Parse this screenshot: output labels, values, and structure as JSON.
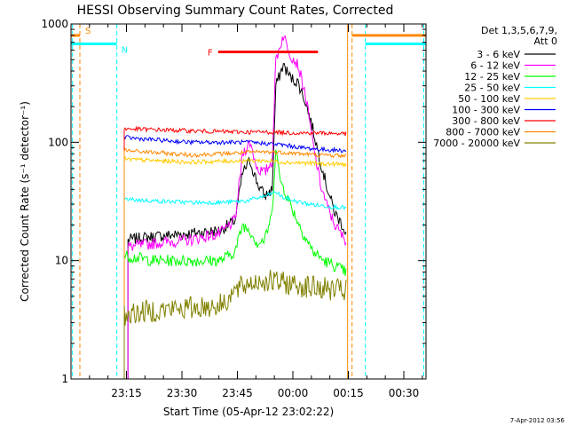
{
  "chart_data": {
    "type": "line",
    "title": "HESSI Observing Summary Count Rates, Corrected",
    "xlabel": "Start Time (05-Apr-12 23:02:22)",
    "ylabel": "Corrected Count Rate (s⁻¹ detector⁻¹)",
    "y_scale": "log",
    "ylim": [
      1,
      1000
    ],
    "xlim_minutes_after_start": [
      -2.4,
      93.6
    ],
    "x_ticks": [
      {
        "label": "23:15",
        "t": 12.6
      },
      {
        "label": "23:30",
        "t": 27.6
      },
      {
        "label": "23:45",
        "t": 42.6
      },
      {
        "label": "00:00",
        "t": 57.6
      },
      {
        "label": "00:15",
        "t": 72.6
      },
      {
        "label": "00:30",
        "t": 87.6
      }
    ],
    "y_ticks": [
      {
        "label": "1",
        "value": 1
      },
      {
        "label": "10",
        "value": 10
      },
      {
        "label": "100",
        "value": 100
      },
      {
        "label": "1000",
        "value": 1000
      }
    ],
    "legend": {
      "placement": "right",
      "header_lines": [
        "Det 1,3,5,6,7,9,",
        "Att 0"
      ]
    },
    "series": [
      {
        "name": "3 - 6 keV",
        "color": "#000000",
        "x": [
          13,
          20,
          30,
          38,
          42,
          44,
          46,
          48,
          50,
          52,
          53,
          55,
          57,
          59,
          61,
          63,
          65,
          67,
          69,
          71,
          72
        ],
        "y": [
          15,
          16,
          17,
          18,
          22,
          55,
          70,
          45,
          35,
          40,
          300,
          450,
          350,
          320,
          220,
          130,
          70,
          40,
          25,
          20,
          17
        ]
      },
      {
        "name": "6 - 12 keV",
        "color": "#ff00ff",
        "x": [
          13,
          20,
          30,
          38,
          42,
          44,
          46,
          48,
          50,
          52,
          53,
          55,
          57,
          59,
          61,
          63,
          65,
          67,
          69,
          71,
          72
        ],
        "y": [
          13,
          14,
          15,
          17,
          22,
          80,
          100,
          60,
          55,
          70,
          500,
          800,
          550,
          450,
          250,
          100,
          45,
          28,
          20,
          16,
          15
        ]
      },
      {
        "name": "12 - 25 keV",
        "color": "#00ff00",
        "x": [
          12,
          20,
          30,
          38,
          42,
          44,
          46,
          48,
          50,
          52,
          53,
          54,
          56,
          58,
          60,
          63,
          66,
          69,
          72
        ],
        "y": [
          11,
          10,
          10,
          10,
          12,
          20,
          18,
          14,
          15,
          25,
          95,
          50,
          35,
          25,
          18,
          12,
          10,
          9,
          8
        ]
      },
      {
        "name": "25 - 50 keV",
        "color": "#00ffff",
        "x": [
          12,
          20,
          30,
          38,
          45,
          50,
          53,
          55,
          58,
          62,
          66,
          72
        ],
        "y": [
          33,
          32,
          31,
          31,
          32,
          35,
          38,
          34,
          32,
          30,
          29,
          28
        ]
      },
      {
        "name": "50 - 100 keV",
        "color": "#ffcc00",
        "x": [
          12,
          20,
          30,
          38,
          45,
          50,
          55,
          60,
          65,
          72
        ],
        "y": [
          72,
          70,
          68,
          69,
          70,
          70,
          68,
          67,
          66,
          65
        ]
      },
      {
        "name": "100 - 300 keV",
        "color": "#0000ff",
        "x": [
          12,
          20,
          30,
          38,
          45,
          50,
          55,
          60,
          65,
          72
        ],
        "y": [
          110,
          105,
          100,
          100,
          100,
          98,
          95,
          90,
          87,
          85
        ]
      },
      {
        "name": "300 - 800 keV",
        "color": "#ff0000",
        "x": [
          12,
          20,
          30,
          38,
          45,
          50,
          55,
          60,
          65,
          72
        ],
        "y": [
          130,
          128,
          125,
          123,
          122,
          122,
          121,
          120,
          120,
          118
        ]
      },
      {
        "name": "800 - 7000 keV",
        "color": "#ff8800",
        "x": [
          12,
          20,
          30,
          38,
          45,
          50,
          55,
          60,
          65,
          72
        ],
        "y": [
          85,
          82,
          78,
          80,
          82,
          83,
          82,
          80,
          78,
          77
        ]
      },
      {
        "name": "7000 - 20000 keV",
        "color": "#808000",
        "x": [
          12,
          20,
          30,
          38,
          42,
          46,
          50,
          54,
          58,
          62,
          66,
          72
        ],
        "y": [
          3.5,
          3.8,
          4.0,
          4.2,
          5.5,
          6.5,
          6.8,
          6.5,
          6.3,
          6.0,
          5.8,
          5.5
        ]
      }
    ],
    "flags": [
      {
        "label": "S",
        "color": "#ff8800",
        "y": 800,
        "start": -2.4,
        "end": 0
      },
      {
        "label": "S",
        "color": "#ff8800",
        "y": 800,
        "start": 73.6,
        "end": 93.6
      },
      {
        "label": "N",
        "color": "#00ffff",
        "y": 680,
        "start": -2.4,
        "end": 10
      },
      {
        "label": "N",
        "color": "#00ffff",
        "y": 680,
        "start": 77.2,
        "end": 93.6
      },
      {
        "label": "F",
        "color": "#ff0000",
        "y": 580,
        "start": 37.4,
        "end": 64.4
      }
    ],
    "event_lines": [
      {
        "kind": "saa",
        "color": "#ff8800",
        "t": [
          0,
          73.6,
          93.0
        ]
      },
      {
        "kind": "night",
        "color": "#00ffff",
        "t": [
          10,
          77.2,
          93.0
        ]
      },
      {
        "kind": "night",
        "color": "#00ffff",
        "t": [
          -2.0
        ]
      },
      {
        "kind": "data-gap",
        "color": "#ff8800",
        "t": [
          72.4
        ]
      }
    ],
    "grid": false
  },
  "stamp": "7-Apr-2012 03:56"
}
